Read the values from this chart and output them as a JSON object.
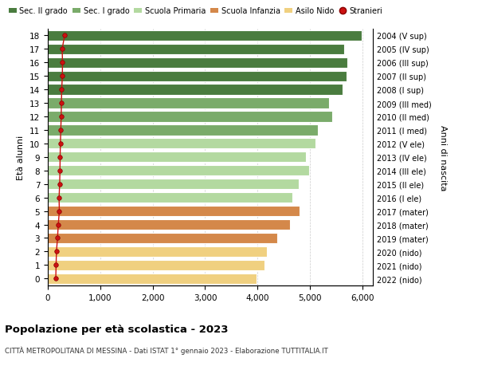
{
  "ages": [
    18,
    17,
    16,
    15,
    14,
    13,
    12,
    11,
    10,
    9,
    8,
    7,
    6,
    5,
    4,
    3,
    2,
    1,
    0
  ],
  "bar_values": [
    5980,
    5650,
    5720,
    5700,
    5620,
    5370,
    5430,
    5150,
    5110,
    4920,
    4980,
    4780,
    4670,
    4800,
    4620,
    4380,
    4180,
    4140,
    3980
  ],
  "stranieri_values": [
    320,
    275,
    280,
    278,
    265,
    260,
    255,
    248,
    240,
    235,
    232,
    226,
    215,
    220,
    200,
    185,
    165,
    158,
    152
  ],
  "right_labels": [
    "2004 (V sup)",
    "2005 (IV sup)",
    "2006 (III sup)",
    "2007 (II sup)",
    "2008 (I sup)",
    "2009 (III med)",
    "2010 (II med)",
    "2011 (I med)",
    "2012 (V ele)",
    "2013 (IV ele)",
    "2014 (III ele)",
    "2015 (II ele)",
    "2016 (I ele)",
    "2017 (mater)",
    "2018 (mater)",
    "2019 (mater)",
    "2020 (nido)",
    "2021 (nido)",
    "2022 (nido)"
  ],
  "bar_colors": [
    "#4a7c3f",
    "#4a7c3f",
    "#4a7c3f",
    "#4a7c3f",
    "#4a7c3f",
    "#7aab6a",
    "#7aab6a",
    "#7aab6a",
    "#b3d9a0",
    "#b3d9a0",
    "#b3d9a0",
    "#b3d9a0",
    "#b3d9a0",
    "#d4884a",
    "#d4884a",
    "#d4884a",
    "#f0d080",
    "#f0d080",
    "#f0d080"
  ],
  "legend_labels": [
    "Sec. II grado",
    "Sec. I grado",
    "Scuola Primaria",
    "Scuola Infanzia",
    "Asilo Nido",
    "Stranieri"
  ],
  "legend_colors": [
    "#4a7c3f",
    "#7aab6a",
    "#b3d9a0",
    "#d4884a",
    "#f0d080",
    "#cc1111"
  ],
  "ylabel": "Età alunni",
  "right_ylabel": "Anni di nascita",
  "title": "Popolazione per età scolastica - 2023",
  "subtitle": "CITTÀ METROPOLITANA DI MESSINA - Dati ISTAT 1° gennaio 2023 - Elaborazione TUTTITALIA.IT",
  "xlim_max": 6200,
  "bar_height": 0.78,
  "background_color": "#ffffff",
  "grid_color": "#cccccc",
  "stranieri_color": "#cc1111"
}
